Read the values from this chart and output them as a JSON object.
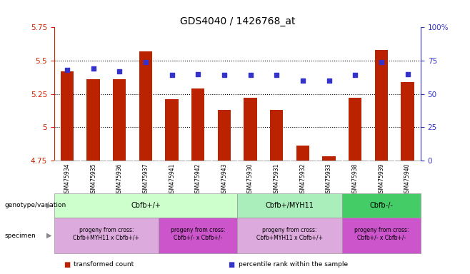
{
  "title": "GDS4040 / 1426768_at",
  "samples": [
    "GSM475934",
    "GSM475935",
    "GSM475936",
    "GSM475937",
    "GSM475941",
    "GSM475942",
    "GSM475943",
    "GSM475930",
    "GSM475931",
    "GSM475932",
    "GSM475933",
    "GSM475938",
    "GSM475939",
    "GSM475940"
  ],
  "bar_values": [
    5.42,
    5.36,
    5.36,
    5.57,
    5.21,
    5.29,
    5.13,
    5.22,
    5.13,
    4.86,
    4.78,
    5.22,
    5.58,
    5.34
  ],
  "dot_values": [
    68,
    69,
    67,
    74,
    64,
    65,
    64,
    64,
    64,
    60,
    60,
    64,
    74,
    65
  ],
  "ylim_left": [
    4.75,
    5.75
  ],
  "ylim_right": [
    0,
    100
  ],
  "yticks_left": [
    4.75,
    5.0,
    5.25,
    5.5,
    5.75
  ],
  "yticks_right": [
    0,
    25,
    50,
    75,
    100
  ],
  "ytick_labels_left": [
    "4.75",
    "5",
    "5.25",
    "5.5",
    "5.75"
  ],
  "ytick_labels_right": [
    "0",
    "25",
    "50",
    "75",
    "100%"
  ],
  "hlines": [
    5.0,
    5.25,
    5.5
  ],
  "bar_color": "#bb2200",
  "dot_color": "#3333cc",
  "bar_width": 0.5,
  "genotype_groups": [
    {
      "label": "Cbfb+/+",
      "start": 0,
      "end": 7,
      "color": "#ccffcc"
    },
    {
      "label": "Cbfb+/MYH11",
      "start": 7,
      "end": 11,
      "color": "#aaeebb"
    },
    {
      "label": "Cbfb-/-",
      "start": 11,
      "end": 14,
      "color": "#44cc66"
    }
  ],
  "specimen_groups": [
    {
      "label": "progeny from cross:\nCbfb+MYH11 x Cbfb+/+",
      "start": 0,
      "end": 4,
      "color": "#ddaadd"
    },
    {
      "label": "progeny from cross:\nCbfb+/- x Cbfb+/-",
      "start": 4,
      "end": 7,
      "color": "#cc55cc"
    },
    {
      "label": "progeny from cross:\nCbfb+MYH11 x Cbfb+/+",
      "start": 7,
      "end": 11,
      "color": "#ddaadd"
    },
    {
      "label": "progeny from cross:\nCbfb+/- x Cbfb+/-",
      "start": 11,
      "end": 14,
      "color": "#cc55cc"
    }
  ],
  "left_axis_color": "#cc2200",
  "right_axis_color": "#3333cc",
  "background_color": "#ffffff",
  "xlabel_bg_color": "#cccccc",
  "geno_border_color": "#999999",
  "spec_border_color": "#999999"
}
